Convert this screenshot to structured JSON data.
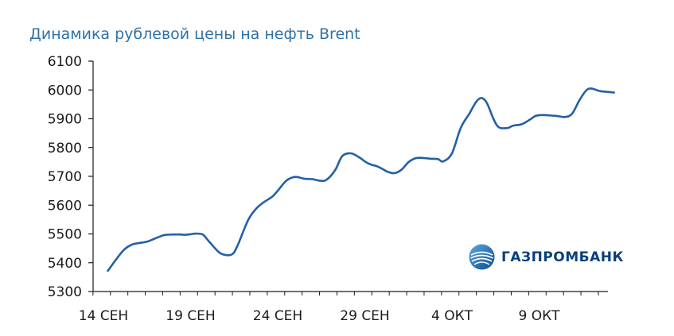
{
  "chart_data": {
    "type": "line",
    "title": "Динамика рублевой цены на нефть Brent",
    "ylim": [
      5300,
      6100
    ],
    "yticks": [
      "6100",
      "6000",
      "5900",
      "5800",
      "5700",
      "5600",
      "5500",
      "5400",
      "5300"
    ],
    "yticks_values": [
      6100,
      6000,
      5900,
      5800,
      5700,
      5600,
      5500,
      5400,
      5300
    ],
    "xticks": [
      "14 СЕН",
      "19 СЕН",
      "24 СЕН",
      "29 СЕН",
      "4 ОКТ",
      "9 ОКТ"
    ],
    "xticks_values": [
      0,
      5,
      10,
      15,
      20,
      25
    ],
    "xlim": [
      0,
      29.6
    ],
    "grid": false,
    "line_color": "#2360a5",
    "series": [
      {
        "x": [
          0.25,
          1.1,
          1.6,
          2.0,
          2.5,
          3.0,
          3.5,
          4.0,
          4.4,
          4.7,
          5.0,
          5.3,
          5.7,
          6.0,
          6.6,
          7.0,
          7.4,
          7.7,
          8.3,
          8.8,
          9.2,
          9.7,
          10.0,
          10.5,
          11.0,
          11.5,
          12.0,
          12.4,
          12.8,
          13.3,
          13.7,
          14.2,
          14.7,
          15.0,
          15.3,
          15.7,
          16.0,
          16.3,
          16.7,
          17.1,
          17.5,
          17.9,
          18.3,
          18.8,
          19.2,
          19.5,
          20.0,
          20.5,
          21.0,
          21.4,
          21.7,
          22.0,
          22.4,
          22.7,
          23.2,
          23.5,
          24.0,
          24.5,
          24.8,
          25.2,
          25.7,
          26.0,
          26.5,
          26.9,
          27.3,
          27.7,
          28.0,
          28.5,
          29.0,
          29.3
        ],
        "y": [
          5372,
          5440,
          5462,
          5468,
          5473,
          5485,
          5496,
          5498,
          5498,
          5497,
          5499,
          5501,
          5498,
          5478,
          5438,
          5427,
          5430,
          5460,
          5548,
          5590,
          5610,
          5630,
          5650,
          5685,
          5698,
          5692,
          5690,
          5685,
          5688,
          5722,
          5770,
          5780,
          5765,
          5752,
          5742,
          5735,
          5726,
          5716,
          5711,
          5723,
          5749,
          5763,
          5764,
          5761,
          5760,
          5752,
          5780,
          5868,
          5918,
          5960,
          5972,
          5955,
          5897,
          5870,
          5868,
          5876,
          5881,
          5898,
          5910,
          5913,
          5911,
          5910,
          5906,
          5918,
          5963,
          5998,
          6005,
          5996,
          5993,
          5991
        ]
      }
    ]
  },
  "logo": {
    "name": "ГАЗПРОМБАНК"
  }
}
